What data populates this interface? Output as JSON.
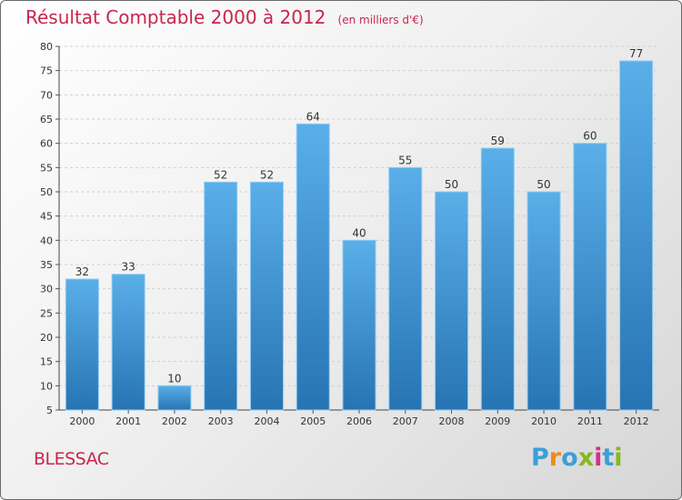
{
  "title": "Résultat Comptable 2000 à 2012",
  "subtitle": "(en milliers d'€)",
  "place": "BLESSAC",
  "logo": {
    "letters": [
      "P",
      "r",
      "o",
      "x",
      "i",
      "t",
      "i"
    ],
    "colors": [
      "#3aa0d8",
      "#f08a1c",
      "#3aa0d8",
      "#86b81e",
      "#d8308a",
      "#3aa0d8",
      "#86b81e"
    ]
  },
  "colors": {
    "bar_top": "#5aafe9",
    "bar_bottom": "#2774b3",
    "accent": "#c8264f"
  },
  "chart_data": {
    "type": "bar",
    "title": "Résultat Comptable 2000 à 2012",
    "subtitle": "(en milliers d'€)",
    "categories": [
      "2000",
      "2001",
      "2002",
      "2003",
      "2004",
      "2005",
      "2006",
      "2007",
      "2008",
      "2009",
      "2010",
      "2011",
      "2012"
    ],
    "values": [
      32,
      33,
      10,
      52,
      52,
      64,
      40,
      55,
      50,
      59,
      50,
      60,
      77
    ],
    "ylim": [
      5,
      80
    ],
    "yticks": [
      5,
      10,
      15,
      20,
      25,
      30,
      35,
      40,
      45,
      50,
      55,
      60,
      65,
      70,
      75,
      80
    ],
    "xlabel": "",
    "ylabel": "",
    "grid": true
  }
}
